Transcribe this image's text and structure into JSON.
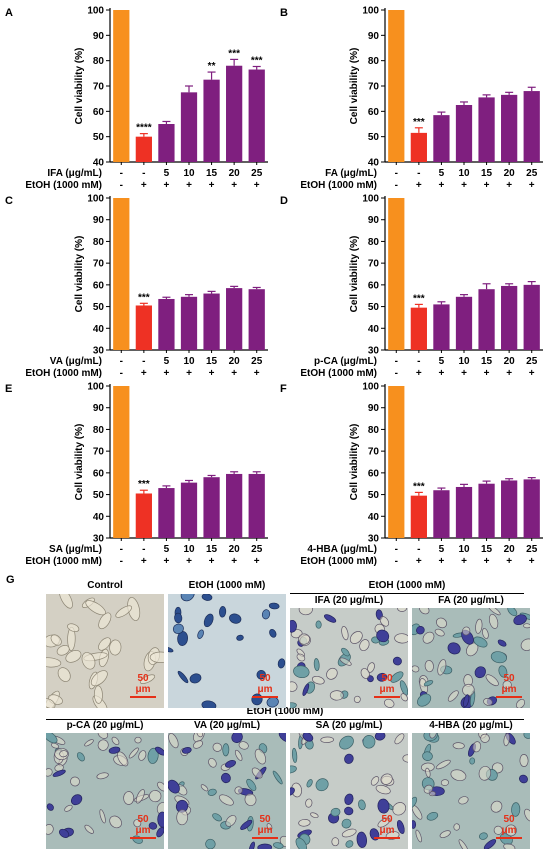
{
  "bar_colors": {
    "control": "#f7901e",
    "ethanol": "#ee3124",
    "treatment": "#7f1f7f"
  },
  "scale_color": "#e53018",
  "chart_data": [
    {
      "id": "A",
      "type": "bar",
      "ylabel": "Cell viability (%)",
      "ylim": [
        40,
        100
      ],
      "yticks": [
        40,
        50,
        60,
        70,
        80,
        90,
        100
      ],
      "treatment_label": "IFA (μg/mL)",
      "ethanol_label": "EtOH (1000 mM)",
      "treatment_row": [
        "-",
        "-",
        "5",
        "10",
        "15",
        "20",
        "25"
      ],
      "ethanol_row": [
        "-",
        "+",
        "+",
        "+",
        "+",
        "+",
        "+"
      ],
      "values": [
        100,
        50,
        55,
        67.5,
        72.5,
        78,
        76.5
      ],
      "errors": [
        0,
        1.2,
        1,
        2.5,
        3,
        2.5,
        1.2
      ],
      "significance": [
        "",
        "****",
        "",
        "",
        "**",
        "***",
        "***"
      ]
    },
    {
      "id": "B",
      "type": "bar",
      "ylabel": "Cell viability (%)",
      "ylim": [
        40,
        100
      ],
      "yticks": [
        40,
        50,
        60,
        70,
        80,
        90,
        100
      ],
      "treatment_label": "FA (μg/mL)",
      "ethanol_label": "EtOH (1000 mM)",
      "treatment_row": [
        "-",
        "-",
        "5",
        "10",
        "15",
        "20",
        "25"
      ],
      "ethanol_row": [
        "-",
        "+",
        "+",
        "+",
        "+",
        "+",
        "+"
      ],
      "values": [
        100,
        51.5,
        58.5,
        62.5,
        65.5,
        66.5,
        68
      ],
      "errors": [
        0,
        2,
        1.2,
        1.2,
        1,
        1,
        1.5
      ],
      "significance": [
        "",
        "***",
        "",
        "",
        "",
        "",
        ""
      ]
    },
    {
      "id": "C",
      "type": "bar",
      "ylabel": "Cell viability (%)",
      "ylim": [
        30,
        100
      ],
      "yticks": [
        30,
        40,
        50,
        60,
        70,
        80,
        90,
        100
      ],
      "treatment_label": "VA (μg/mL)",
      "ethanol_label": "EtOH (1000 mM)",
      "treatment_row": [
        "-",
        "-",
        "5",
        "10",
        "15",
        "20",
        "25"
      ],
      "ethanol_row": [
        "-",
        "+",
        "+",
        "+",
        "+",
        "+",
        "+"
      ],
      "values": [
        100,
        50.5,
        53.5,
        54.5,
        56,
        58.5,
        58
      ],
      "errors": [
        0,
        1,
        0.8,
        1,
        1,
        0.8,
        0.8
      ],
      "significance": [
        "",
        "***",
        "",
        "",
        "",
        "",
        ""
      ]
    },
    {
      "id": "D",
      "type": "bar",
      "ylabel": "Cell viability (%)",
      "ylim": [
        30,
        100
      ],
      "yticks": [
        30,
        40,
        50,
        60,
        70,
        80,
        90,
        100
      ],
      "treatment_label": "p-CA (μg/mL)",
      "ethanol_label": "EtOH (1000 mM)",
      "treatment_row": [
        "-",
        "-",
        "5",
        "10",
        "15",
        "20",
        "25"
      ],
      "ethanol_row": [
        "-",
        "+",
        "+",
        "+",
        "+",
        "+",
        "+"
      ],
      "values": [
        100,
        49.5,
        51,
        54.5,
        58,
        59.5,
        60
      ],
      "errors": [
        0,
        1.5,
        1.2,
        1,
        2.5,
        1,
        1.5
      ],
      "significance": [
        "",
        "***",
        "",
        "",
        "",
        "",
        ""
      ]
    },
    {
      "id": "E",
      "type": "bar",
      "ylabel": "Cell viability (%)",
      "ylim": [
        30,
        100
      ],
      "yticks": [
        30,
        40,
        50,
        60,
        70,
        80,
        90,
        100
      ],
      "treatment_label": "SA (μg/mL)",
      "ethanol_label": "EtOH (1000 mM)",
      "treatment_row": [
        "-",
        "-",
        "5",
        "10",
        "15",
        "20",
        "25"
      ],
      "ethanol_row": [
        "-",
        "+",
        "+",
        "+",
        "+",
        "+",
        "+"
      ],
      "values": [
        100,
        50.5,
        53,
        55.5,
        58,
        59.5,
        59.5
      ],
      "errors": [
        0,
        1.5,
        1,
        1,
        0.8,
        1,
        1
      ],
      "significance": [
        "",
        "***",
        "",
        "",
        "",
        "",
        ""
      ]
    },
    {
      "id": "F",
      "type": "bar",
      "ylabel": "Cell viability (%)",
      "ylim": [
        30,
        100
      ],
      "yticks": [
        30,
        40,
        50,
        60,
        70,
        80,
        90,
        100
      ],
      "treatment_label": "4-HBA (μg/mL)",
      "ethanol_label": "EtOH (1000 mM)",
      "treatment_row": [
        "-",
        "-",
        "5",
        "10",
        "15",
        "20",
        "25"
      ],
      "ethanol_row": [
        "-",
        "+",
        "+",
        "+",
        "+",
        "+",
        "+"
      ],
      "values": [
        100,
        49.5,
        52,
        53.5,
        55,
        56.5,
        57
      ],
      "errors": [
        0,
        1.5,
        1,
        1.2,
        1.2,
        0.8,
        0.8
      ],
      "significance": [
        "",
        "***",
        "",
        "",
        "",
        "",
        ""
      ]
    }
  ],
  "panel_g": {
    "letter": "G",
    "group_label": "EtOH (1000 mM)",
    "scale_text": "50 μm",
    "row1": [
      {
        "label": "Control",
        "style": "control"
      },
      {
        "label": "EtOH (1000 mM)",
        "style": "ethanol"
      },
      {
        "label": "IFA (20 μg/mL)",
        "style": "mixed"
      },
      {
        "label": "FA (20 μg/mL)",
        "style": "mixed"
      }
    ],
    "row2": [
      {
        "label": "p-CA (20 μg/mL)",
        "style": "mixed"
      },
      {
        "label": "VA (20 μg/mL)",
        "style": "mixed"
      },
      {
        "label": "SA (20 μg/mL)",
        "style": "mixed"
      },
      {
        "label": "4-HBA (20 μg/mL)",
        "style": "mixed"
      }
    ]
  }
}
